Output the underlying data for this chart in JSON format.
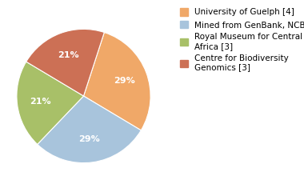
{
  "legend_labels": [
    "University of Guelph [4]",
    "Mined from GenBank, NCBI [4]",
    "Royal Museum for Central\nAfrica [3]",
    "Centre for Biodiversity\nGenomics [3]"
  ],
  "values": [
    4,
    4,
    3,
    3
  ],
  "colors": [
    "#f0a868",
    "#a8c4dc",
    "#a8c068",
    "#cc7055"
  ],
  "autopct_color": "white",
  "startangle": 72,
  "pct_fontsize": 8,
  "legend_fontsize": 7.5,
  "background_color": "#ffffff"
}
